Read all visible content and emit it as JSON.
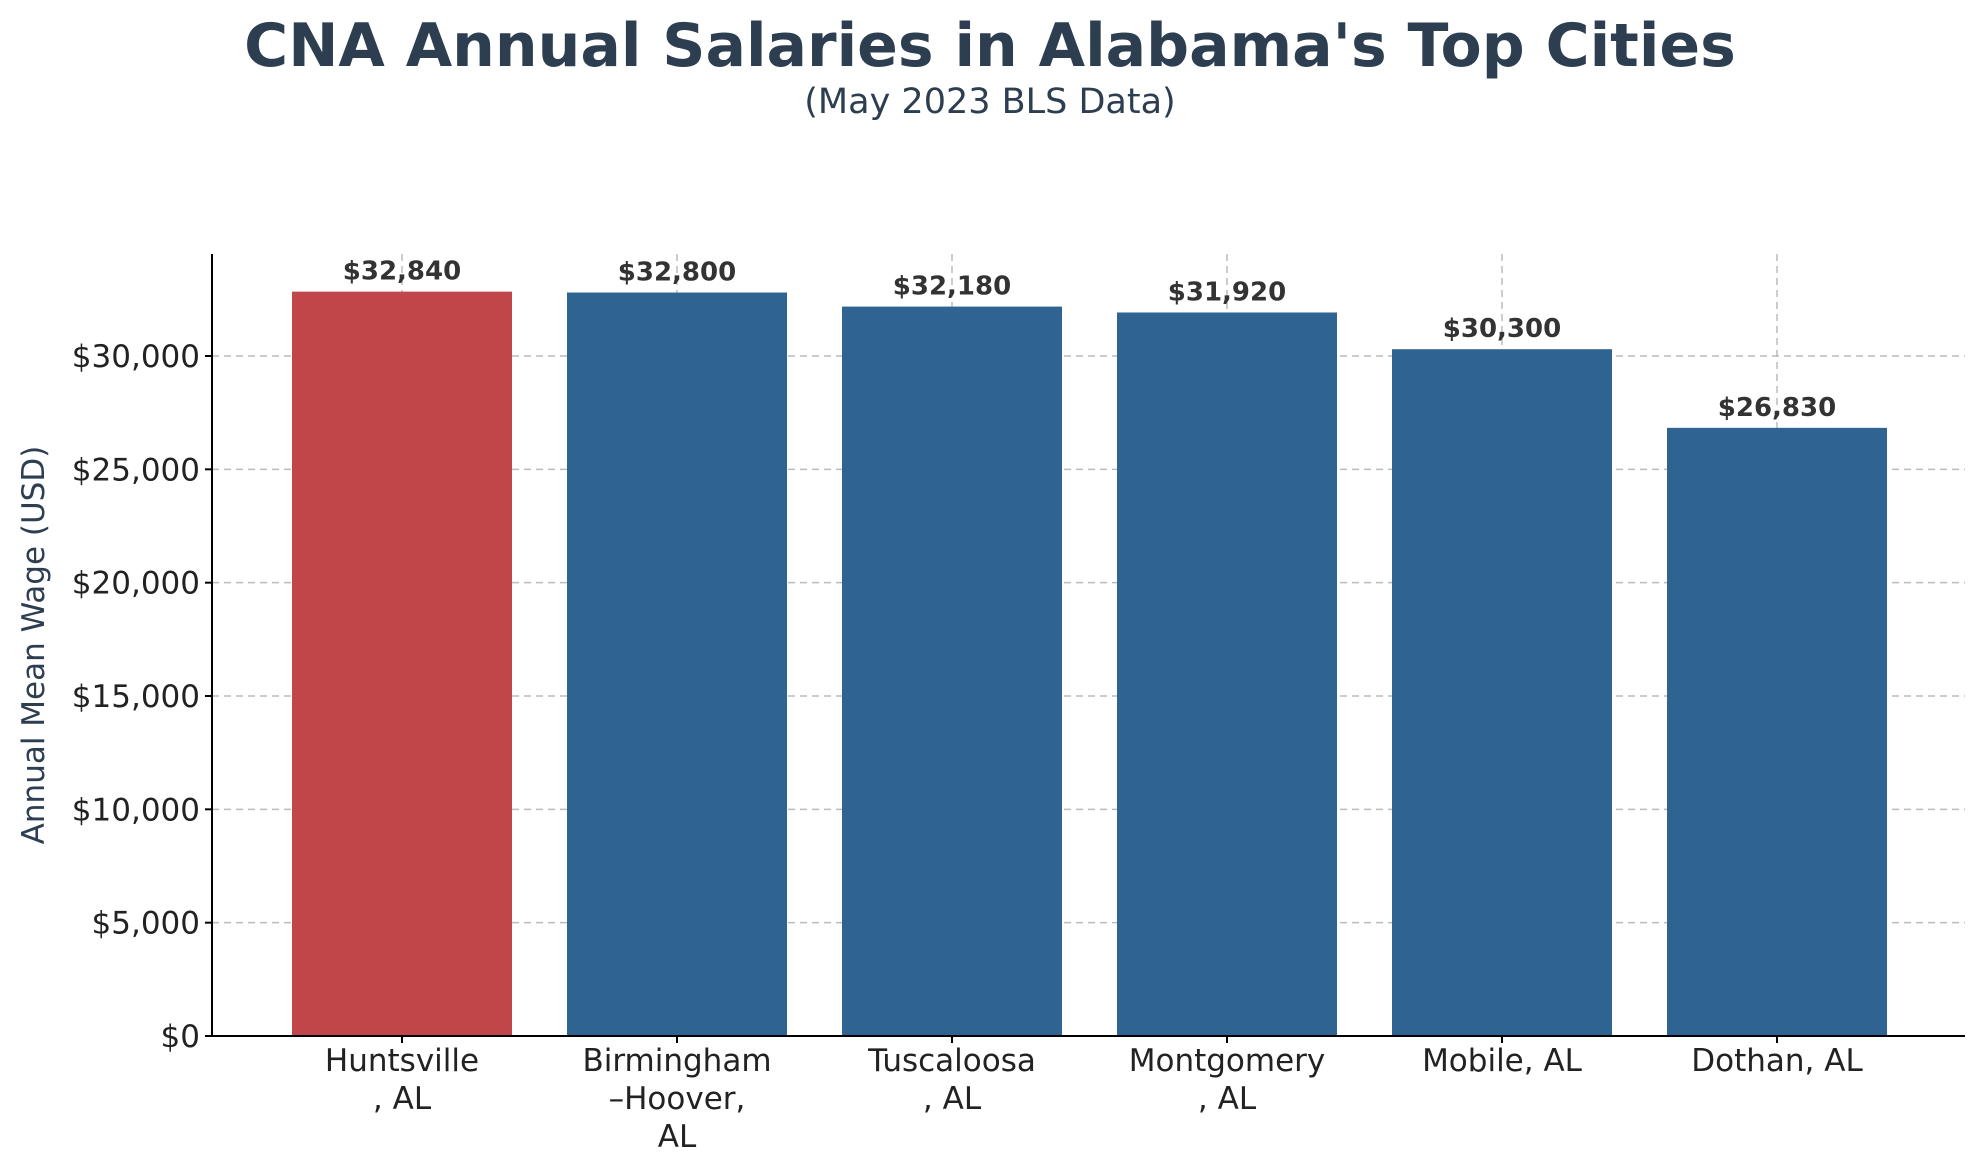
{
  "chart_data": {
    "type": "bar",
    "title": "CNA Annual Salaries in Alabama's Top Cities",
    "subtitle": "(May 2023 BLS Data)",
    "xlabel": "",
    "ylabel": "Annual Mean Wage (USD)",
    "categories": [
      [
        "Huntsville",
        ", AL"
      ],
      [
        "Birmingham",
        "–Hoover,",
        "AL"
      ],
      [
        "Tuscaloosa",
        ", AL"
      ],
      [
        "Montgomery",
        ", AL"
      ],
      [
        "Mobile, AL"
      ],
      [
        "Dothan, AL"
      ]
    ],
    "values": [
      32840,
      32800,
      32180,
      31920,
      30300,
      26830
    ],
    "value_labels": [
      "$32,840",
      "$32,800",
      "$32,180",
      "$31,920",
      "$30,300",
      "$26,830"
    ],
    "bar_colors": [
      "#c0464a",
      "#2f6391",
      "#2f6391",
      "#2f6391",
      "#2f6391",
      "#2f6391"
    ],
    "ylim": [
      0,
      34500
    ],
    "yticks": [
      0,
      5000,
      10000,
      15000,
      20000,
      25000,
      30000
    ],
    "ytick_labels": [
      "$0",
      "$5,000",
      "$10,000",
      "$15,000",
      "$20,000",
      "$25,000",
      "$30,000"
    ],
    "grid": true,
    "grid_style": "dashed",
    "colors": {
      "highlight": "#c0464a",
      "bar": "#2f6391",
      "title": "#2c3e50",
      "grid": "#bbbbbb"
    }
  }
}
